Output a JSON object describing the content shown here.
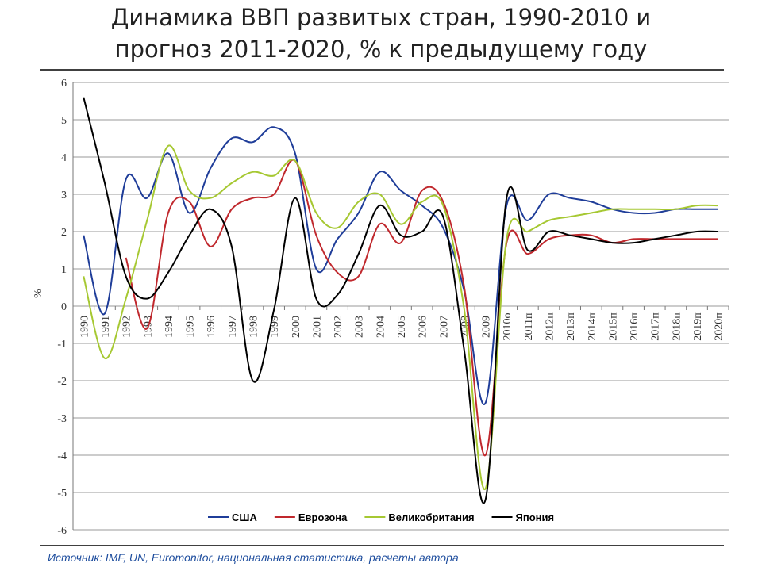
{
  "chart_data": {
    "type": "line",
    "title": [
      "Динамика ВВП развитых стран, 1990-2010 и",
      "прогноз 2011-2020, % к предыдущему году"
    ],
    "y_label": "%",
    "source": "Источник: IMF, UN, Euromonitor, национальная статистика, расчеты автора",
    "categories": [
      "1990",
      "1991",
      "1992",
      "1993",
      "1994",
      "1995",
      "1996",
      "1997",
      "1998",
      "1999",
      "2000",
      "2001",
      "2002",
      "2003",
      "2004",
      "2005",
      "2006",
      "2007",
      "2008",
      "2009",
      "2010о",
      "2011п",
      "2012п",
      "2013п",
      "2014п",
      "2015п",
      "2016п",
      "2017п",
      "2018п",
      "2019п",
      "2020п"
    ],
    "ylim": [
      -6,
      6
    ],
    "yticks": [
      -6,
      -5,
      -4,
      -3,
      -2,
      -1,
      0,
      1,
      2,
      3,
      4,
      5,
      6
    ],
    "grid": true,
    "series": [
      {
        "name": "США",
        "color": "#1f3d99",
        "values": [
          1.9,
          -0.2,
          3.4,
          2.9,
          4.1,
          2.5,
          3.7,
          4.5,
          4.4,
          4.8,
          4.1,
          1.0,
          1.8,
          2.5,
          3.6,
          3.1,
          2.7,
          2.1,
          0.4,
          -2.6,
          2.7,
          2.3,
          3.0,
          2.9,
          2.8,
          2.6,
          2.5,
          2.5,
          2.6,
          2.6,
          2.6
        ]
      },
      {
        "name": "Еврозона",
        "color": "#c0282d",
        "values": [
          null,
          null,
          1.3,
          -0.6,
          2.5,
          2.8,
          1.6,
          2.6,
          2.9,
          3.0,
          3.9,
          1.9,
          0.9,
          0.8,
          2.2,
          1.7,
          3.1,
          2.8,
          0.5,
          -4.0,
          1.7,
          1.4,
          1.8,
          1.9,
          1.9,
          1.7,
          1.8,
          1.8,
          1.8,
          1.8,
          1.8
        ]
      },
      {
        "name": "Великобритания",
        "color": "#a6c832",
        "values": [
          0.8,
          -1.4,
          0.2,
          2.3,
          4.3,
          3.1,
          2.9,
          3.3,
          3.6,
          3.5,
          3.9,
          2.5,
          2.1,
          2.8,
          3.0,
          2.2,
          2.8,
          2.7,
          -0.1,
          -4.9,
          1.8,
          2.0,
          2.3,
          2.4,
          2.5,
          2.6,
          2.6,
          2.6,
          2.6,
          2.7,
          2.7
        ]
      },
      {
        "name": "Япония",
        "color": "#000000",
        "values": [
          5.6,
          3.3,
          0.8,
          0.2,
          0.9,
          1.9,
          2.6,
          1.6,
          -2.0,
          -0.1,
          2.9,
          0.2,
          0.3,
          1.4,
          2.7,
          1.9,
          2.0,
          2.4,
          -1.2,
          -5.2,
          2.9,
          1.5,
          2.0,
          1.9,
          1.8,
          1.7,
          1.7,
          1.8,
          1.9,
          2.0,
          2.0
        ]
      }
    ]
  }
}
